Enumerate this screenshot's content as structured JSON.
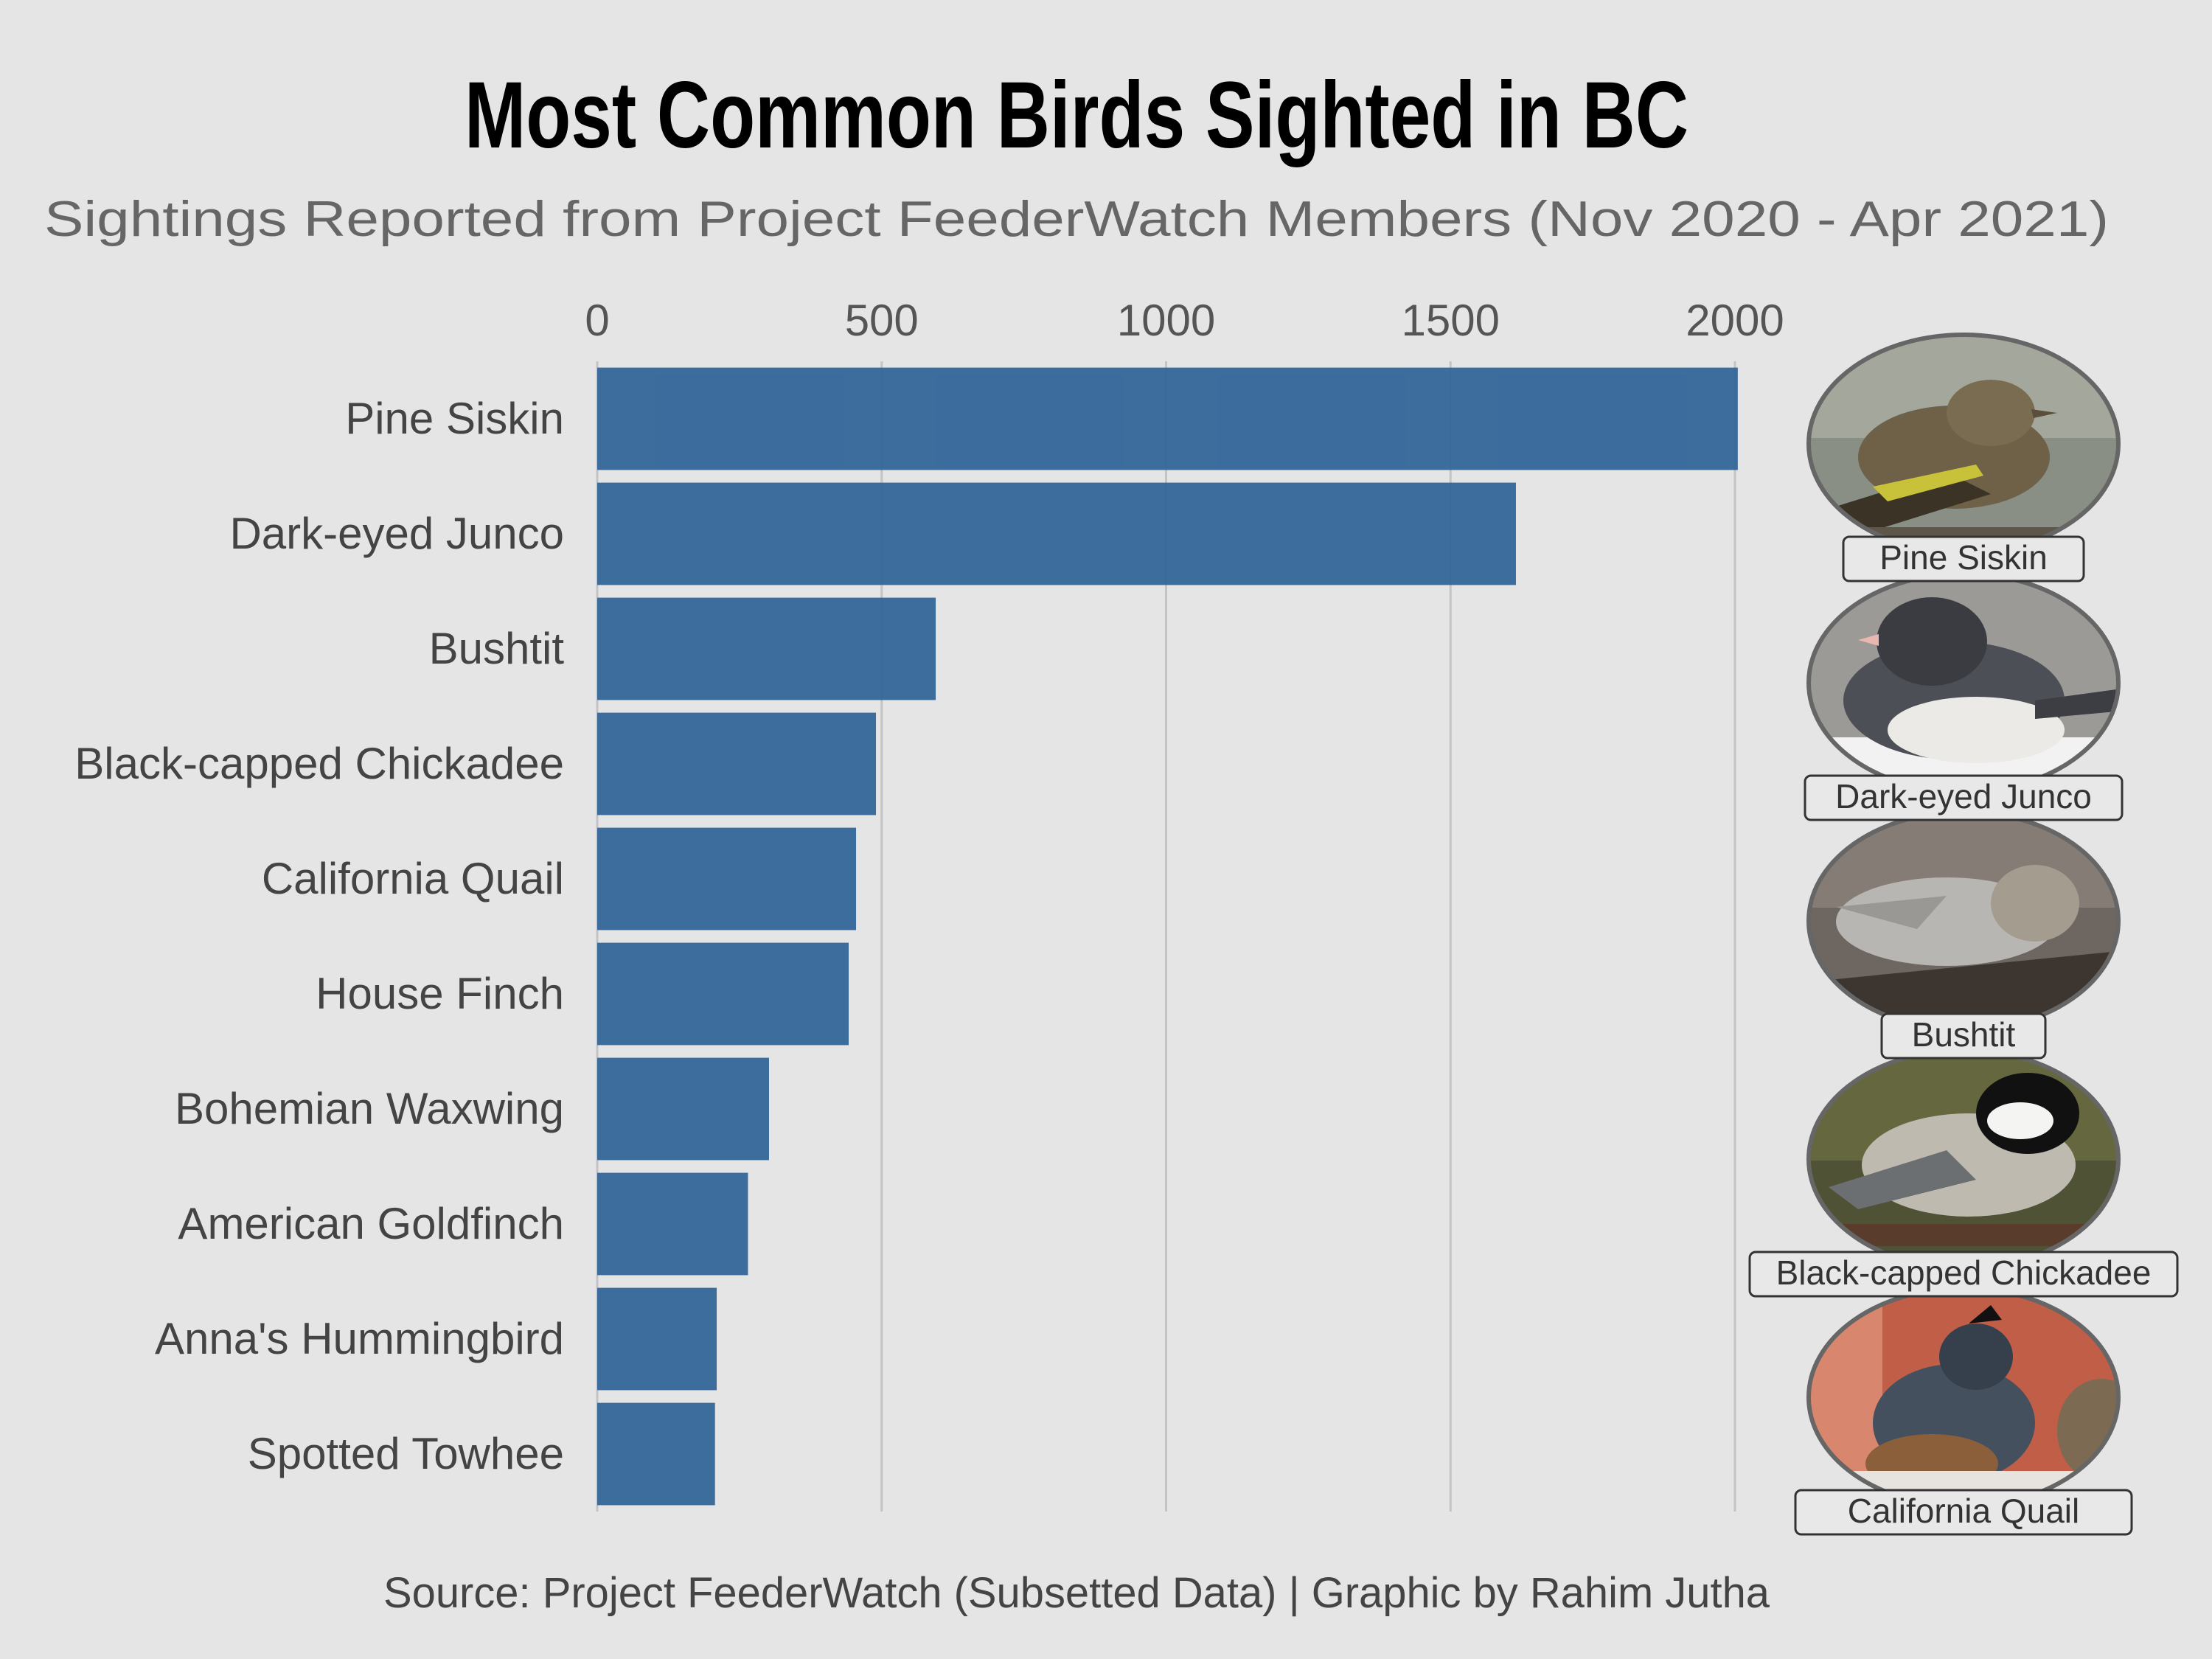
{
  "chart_data": {
    "type": "bar",
    "orientation": "horizontal",
    "title": "Most Common Birds Sighted in BC",
    "subtitle": "Sightings Reported from Project FeederWatch Members (Nov 2020 - Apr 2021)",
    "caption": "Source: Project FeederWatch (Subsetted Data) | Graphic by Rahim Jutha",
    "categories": [
      "Pine Siskin",
      "Dark-eyed Junco",
      "Bushtit",
      "Black-capped Chickadee",
      "California Quail",
      "House Finch",
      "Bohemian Waxwing",
      "American Goldfinch",
      "Anna's Hummingbird",
      "Spotted Towhee"
    ],
    "values": [
      2005,
      1615,
      595,
      490,
      455,
      442,
      302,
      265,
      210,
      207
    ],
    "xlim": [
      0,
      2000
    ],
    "ticks": [
      "0",
      "500",
      "1000",
      "1500",
      "2000"
    ],
    "tick_values": [
      0,
      500,
      1000,
      1500,
      2000
    ],
    "axis_position": "top",
    "grid": true,
    "bar_color": "#336699",
    "background_color": "#e5e5e5",
    "photo_labels": [
      "Pine Siskin",
      "Dark-eyed Junco",
      "Bushtit",
      "Black-capped Chickadee",
      "California Quail"
    ]
  }
}
